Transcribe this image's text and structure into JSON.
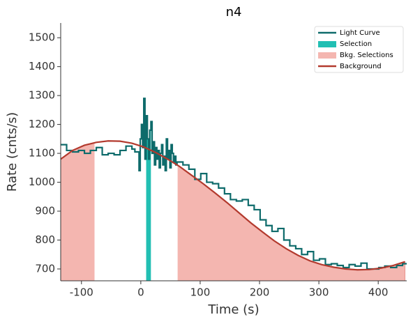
{
  "chart_data": {
    "type": "step",
    "title": "n4",
    "x_label": "Time (s)",
    "y_label": "Rate (cnts/s)",
    "xlim": [
      -135,
      448
    ],
    "ylim": [
      659,
      1551
    ],
    "xticks": [
      -100,
      0,
      100,
      200,
      300,
      400
    ],
    "yticks": [
      700,
      800,
      900,
      1000,
      1100,
      1200,
      1300,
      1400,
      1500
    ],
    "legend": "upper right",
    "series": [
      {
        "name": "Light Curve",
        "color": "#0e6b6b",
        "x": [
          -135,
          -125,
          -115,
          -105,
          -95,
          -85,
          -75,
          -65,
          -55,
          -45,
          -35,
          -25,
          -15,
          -10,
          -3,
          -1,
          1,
          3,
          5,
          7,
          9,
          11,
          13,
          15,
          17,
          19,
          21,
          23,
          25,
          27,
          29,
          31,
          33,
          35,
          37,
          39,
          41,
          43,
          45,
          47,
          49,
          51,
          53,
          55,
          57,
          59,
          61,
          71,
          81,
          91,
          101,
          111,
          121,
          131,
          141,
          151,
          161,
          171,
          181,
          191,
          201,
          211,
          221,
          231,
          241,
          251,
          261,
          271,
          281,
          291,
          301,
          311,
          321,
          331,
          341,
          351,
          361,
          371,
          381,
          391,
          401,
          411,
          421,
          431,
          441
        ],
        "values": [
          1130,
          1110,
          1105,
          1110,
          1100,
          1110,
          1120,
          1095,
          1100,
          1095,
          1110,
          1125,
          1115,
          1105,
          1040,
          1150,
          1200,
          1120,
          1290,
          1080,
          1230,
          1150,
          1080,
          1180,
          1210,
          1100,
          1140,
          1060,
          1120,
          1080,
          1110,
          1050,
          1100,
          1130,
          1060,
          1090,
          1040,
          1150,
          1080,
          1110,
          1050,
          1130,
          1100,
          1070,
          1090,
          1060,
          1070,
          1060,
          1045,
          1010,
          1030,
          1000,
          995,
          980,
          960,
          940,
          935,
          940,
          920,
          905,
          870,
          850,
          830,
          840,
          800,
          780,
          770,
          750,
          760,
          730,
          735,
          715,
          718,
          712,
          705,
          715,
          710,
          720,
          700,
          700,
          705,
          710,
          705,
          712,
          718
        ]
      },
      {
        "name": "Background",
        "color": "#b33a2e",
        "x": [
          -135,
          -115,
          -95,
          -75,
          -55,
          -35,
          -15,
          5,
          25,
          45,
          65,
          85,
          105,
          125,
          145,
          165,
          185,
          205,
          225,
          245,
          265,
          285,
          305,
          325,
          345,
          365,
          385,
          405,
          425,
          445
        ],
        "values": [
          1080,
          1110,
          1128,
          1138,
          1143,
          1142,
          1135,
          1122,
          1103,
          1080,
          1055,
          1025,
          995,
          963,
          930,
          895,
          860,
          828,
          797,
          770,
          747,
          728,
          715,
          706,
          700,
          697,
          698,
          703,
          712,
          725
        ]
      }
    ],
    "selection": {
      "name": "Selection",
      "color": "#22bfb3",
      "range": [
        9,
        17
      ]
    },
    "bkg_selections": {
      "name": "Bkg. Selections",
      "color": "#f4b6b0",
      "ranges": [
        [
          -135,
          -78
        ],
        [
          62,
          448
        ]
      ]
    }
  }
}
